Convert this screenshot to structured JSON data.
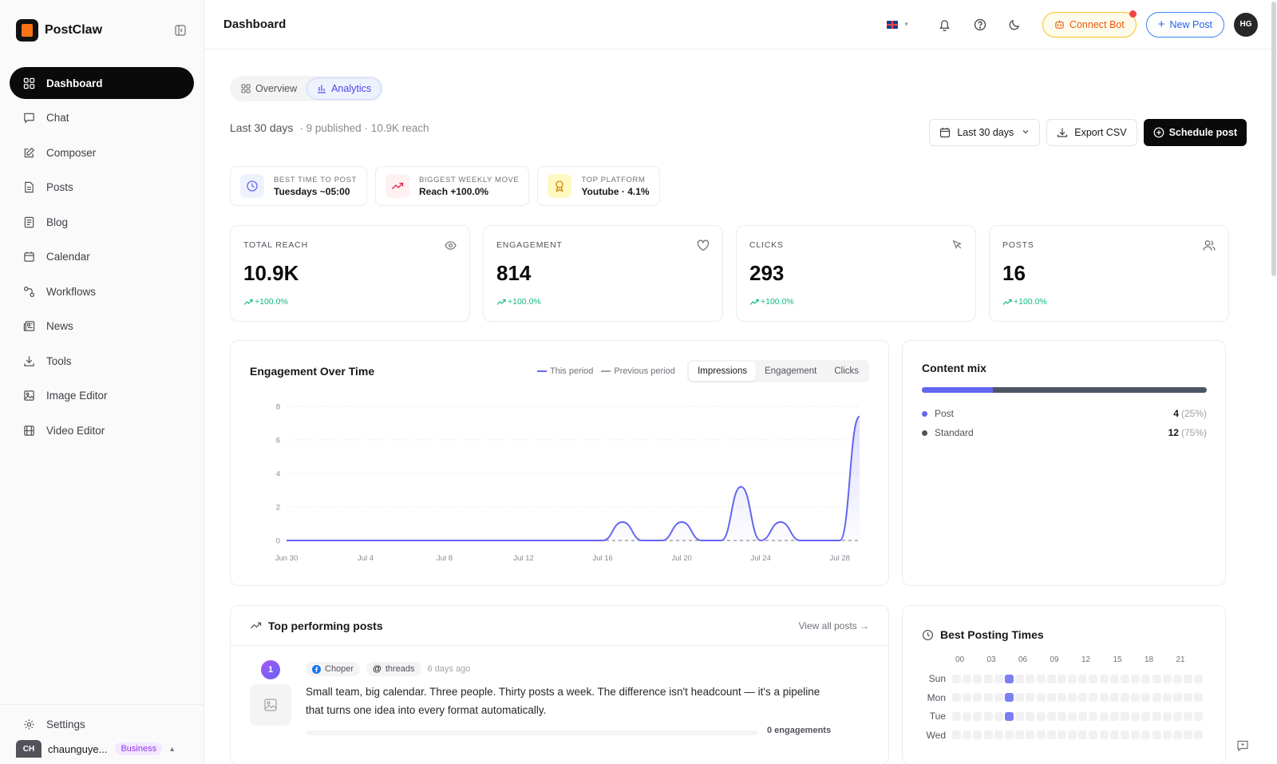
{
  "brand": {
    "name": "PostClaw"
  },
  "sidebar": {
    "items": [
      {
        "label": "Dashboard",
        "icon": "grid-icon",
        "active": true
      },
      {
        "label": "Chat",
        "icon": "chat-icon"
      },
      {
        "label": "Composer",
        "icon": "edit-icon"
      },
      {
        "label": "Posts",
        "icon": "file-icon"
      },
      {
        "label": "Blog",
        "icon": "blog-icon"
      },
      {
        "label": "Calendar",
        "icon": "calendar-icon"
      },
      {
        "label": "Workflows",
        "icon": "workflow-icon"
      },
      {
        "label": "News",
        "icon": "news-icon"
      },
      {
        "label": "Tools",
        "icon": "download-icon"
      },
      {
        "label": "Image Editor",
        "icon": "image-icon"
      },
      {
        "label": "Video Editor",
        "icon": "film-icon"
      }
    ],
    "settings_label": "Settings",
    "user": {
      "initials": "CH",
      "name": "chaunguye...",
      "plan": "Business"
    }
  },
  "header": {
    "title": "Dashboard",
    "connect_bot": "Connect Bot",
    "new_post": "New Post",
    "avatar": "HG"
  },
  "tabs": [
    {
      "label": "Overview",
      "active": false
    },
    {
      "label": "Analytics",
      "active": true
    }
  ],
  "summary": {
    "period": "Last 30 days",
    "meta": "· 9 published · 10.9K reach"
  },
  "actions": {
    "range": "Last 30 days",
    "export": "Export CSV",
    "schedule": "Schedule post"
  },
  "insights": [
    {
      "label": "BEST TIME TO POST",
      "value": "Tuesdays ~05:00",
      "color": "#6366f1",
      "bg": "#eef2ff"
    },
    {
      "label": "BIGGEST WEEKLY MOVE",
      "value": "Reach +100.0%",
      "color": "#e11d48",
      "bg": "#fff1f2"
    },
    {
      "label": "TOP PLATFORM",
      "value": "Youtube · 4.1%",
      "color": "#ca8a04",
      "bg": "#fef9c3"
    }
  ],
  "kpis": [
    {
      "label": "TOTAL REACH",
      "value": "10.9K",
      "delta": "+100.0%",
      "icon": "eye-icon"
    },
    {
      "label": "ENGAGEMENT",
      "value": "814",
      "delta": "+100.0%",
      "icon": "heart-icon"
    },
    {
      "label": "CLICKS",
      "value": "293",
      "delta": "+100.0%",
      "icon": "cursor-icon"
    },
    {
      "label": "POSTS",
      "value": "16",
      "delta": "+100.0%",
      "icon": "users-icon"
    }
  ],
  "engagement_chart": {
    "title": "Engagement Over Time",
    "legend_this": "This period",
    "legend_prev": "Previous period",
    "metric_tabs": [
      "Impressions",
      "Engagement",
      "Clicks"
    ],
    "active_metric": "Impressions"
  },
  "chart_data": {
    "type": "line",
    "title": "Engagement Over Time",
    "x_ticks": [
      "Jun 30",
      "Jul 4",
      "Jul 8",
      "Jul 12",
      "Jul 16",
      "Jul 20",
      "Jul 24",
      "Jul 28"
    ],
    "y_ticks": [
      0,
      2,
      4,
      6,
      8
    ],
    "ylim": [
      0,
      8
    ],
    "x_start": "Jun 30",
    "x_end": "Jul 29",
    "series": [
      {
        "name": "This period",
        "color": "#6366f1",
        "values": [
          0,
          0,
          0,
          0,
          0,
          0,
          0,
          0,
          0,
          0,
          0,
          0,
          0,
          0,
          0,
          0,
          0,
          1.1,
          0,
          0,
          1.1,
          0,
          0,
          3.2,
          0,
          1.1,
          0,
          0,
          0,
          7.4
        ]
      },
      {
        "name": "Previous period",
        "color": "#a1a1aa",
        "values": [
          0,
          0,
          0,
          0,
          0,
          0,
          0,
          0,
          0,
          0,
          0,
          0,
          0,
          0,
          0,
          0,
          0,
          0,
          0,
          0,
          0,
          0,
          0,
          0,
          0,
          0,
          0,
          0,
          0,
          0
        ]
      }
    ]
  },
  "content_mix": {
    "title": "Content mix",
    "items": [
      {
        "label": "Post",
        "count": "4",
        "pct": "(25%)",
        "share": 0.25,
        "color": "#6366f1"
      },
      {
        "label": "Standard",
        "count": "12",
        "pct": "(75%)",
        "share": 0.75,
        "color": "#52525b"
      }
    ]
  },
  "top_posts": {
    "title": "Top performing posts",
    "view_all": "View all posts →",
    "items": [
      {
        "rank": "1",
        "author": "Choper",
        "platform": "threads",
        "ago": "6 days ago",
        "text": "Small team, big calendar. Three people. Thirty posts a week. The difference isn't headcount — it's a pipeline that turns one idea into every format automatically.",
        "engagements": "0 engagements"
      }
    ]
  },
  "best_times": {
    "title": "Best Posting Times",
    "hours": [
      "00",
      "03",
      "06",
      "09",
      "12",
      "15",
      "18",
      "21"
    ],
    "days": [
      "Sun",
      "Mon",
      "Tue",
      "Wed"
    ],
    "highlight_col": 5
  }
}
